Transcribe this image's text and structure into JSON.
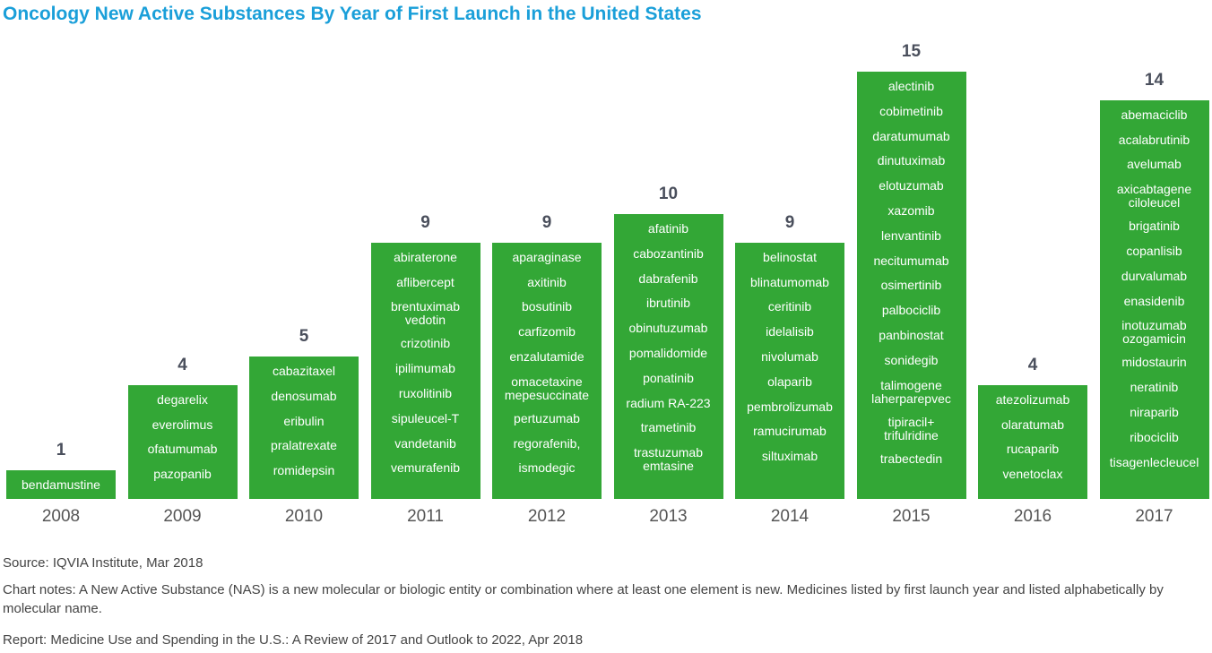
{
  "chart_data": {
    "type": "bar",
    "title": "Oncology New Active Substances By Year of First Launch in the United States",
    "categories": [
      "2008",
      "2009",
      "2010",
      "2011",
      "2012",
      "2013",
      "2014",
      "2015",
      "2016",
      "2017"
    ],
    "values": [
      1,
      4,
      5,
      9,
      9,
      10,
      9,
      15,
      4,
      14
    ],
    "bar_color": "#33a736",
    "title_color": "#1a9fd9",
    "labels": [
      [
        "bendamustine"
      ],
      [
        "degarelix",
        "everolimus",
        "ofatumumab",
        "pazopanib"
      ],
      [
        "cabazitaxel",
        "denosumab",
        "eribulin",
        "pralatrexate",
        "romidepsin"
      ],
      [
        "abiraterone",
        "aflibercept",
        "brentuximab vedotin",
        "crizotinib",
        "ipilimumab",
        "ruxolitinib",
        "sipuleucel-T",
        "vandetanib",
        "vemurafenib"
      ],
      [
        "aparaginase",
        "axitinib",
        "bosutinib",
        "carfizomib",
        "enzalutamide",
        "omacetaxine mepesuccinate",
        "pertuzumab",
        "regorafenib,",
        "ismodegic"
      ],
      [
        "afatinib",
        "cabozantinib",
        "dabrafenib",
        "ibrutinib",
        "obinutuzumab",
        "pomalidomide",
        "ponatinib",
        "radium RA-223",
        "trametinib",
        "trastuzumab emtasine"
      ],
      [
        "belinostat",
        "blinatumomab",
        "ceritinib",
        "idelalisib",
        "nivolumab",
        "olaparib",
        "pembrolizumab",
        "ramucirumab",
        "siltuximab"
      ],
      [
        "alectinib",
        "cobimetinib",
        "daratumumab",
        "dinutuximab",
        "elotuzumab",
        "xazomib",
        "lenvantinib",
        "necitumumab",
        "osimertinib",
        "palbociclib",
        "panbinostat",
        "sonidegib",
        "talimogene laherparepvec",
        "tipiracil+ trifulridine",
        "trabectedin"
      ],
      [
        "atezolizumab",
        "olaratumab",
        "rucaparib",
        "venetoclax"
      ],
      [
        "abemaciclib",
        "acalabrutinib",
        "avelumab",
        "axicabtagene ciloleucel",
        "brigatinib",
        "copanlisib",
        "durvalumab",
        "enasidenib",
        "inotuzumab ozogamicin",
        "midostaurin",
        "neratinib",
        "niraparib",
        "ribociclib",
        "tisagenlecleucel"
      ]
    ]
  },
  "notes": {
    "source": "Source: IQVIA Institute, Mar 2018",
    "chart_notes": "Chart notes: A New Active Substance (NAS) is a new molecular or biologic entity or combination where at least one element is new. Medicines listed by first launch year and listed alphabetically by molecular name.",
    "report": "Report: Medicine Use and Spending in the U.S.: A Review of 2017 and Outlook to 2022, Apr 2018"
  }
}
